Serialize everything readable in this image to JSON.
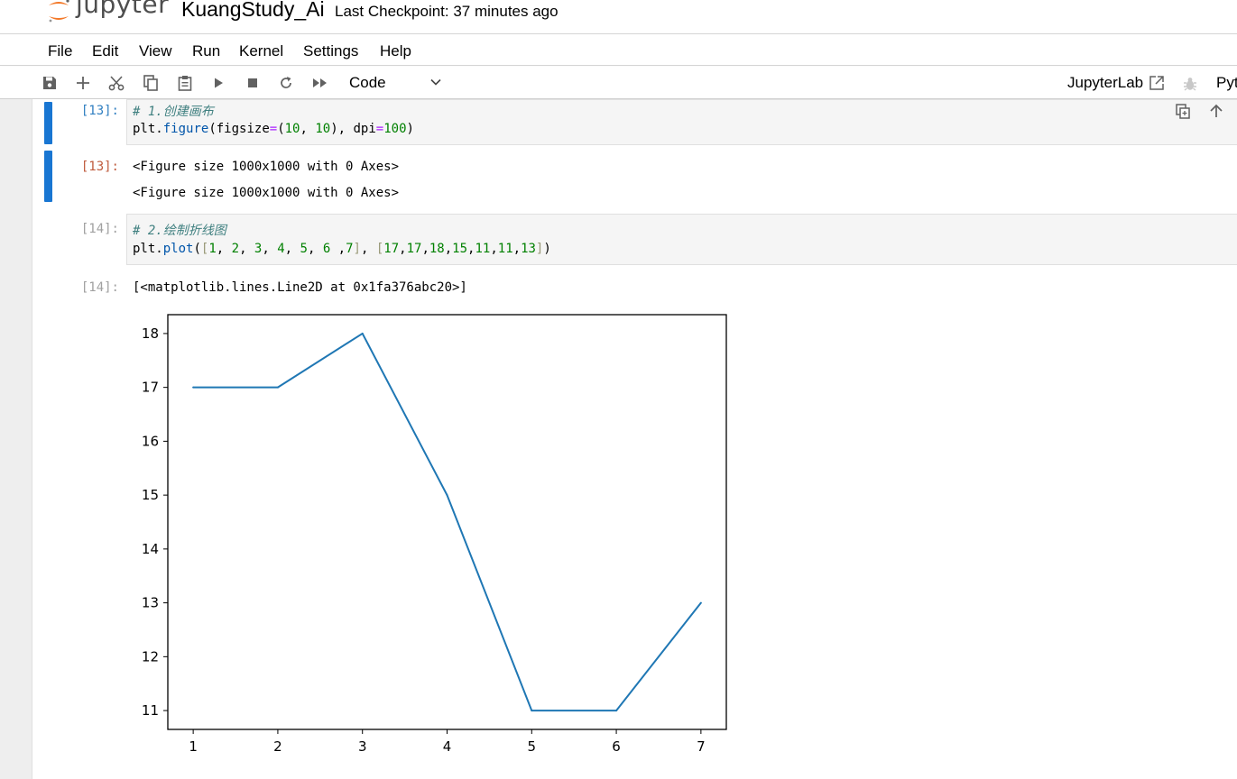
{
  "header": {
    "logo_text": "jupyter",
    "notebook_title": "KuangStudy_Ai",
    "checkpoint": "Last Checkpoint: 37 minutes ago"
  },
  "menu": {
    "items": [
      "File",
      "Edit",
      "View",
      "Run",
      "Kernel",
      "Settings",
      "Help"
    ]
  },
  "toolbar": {
    "icons": [
      "save-icon",
      "add-icon",
      "cut-icon",
      "copy-icon",
      "paste-icon",
      "run-icon",
      "stop-icon",
      "restart-icon",
      "run-all-icon"
    ],
    "cell_type": "Code",
    "jupyterlab_link": "JupyterLab",
    "kernel_name": "Pyt"
  },
  "cells": [
    {
      "in_prompt": "[13]:",
      "code": {
        "line1": "# 1.创建画布",
        "line2": {
          "obj": "plt",
          "dot": ".",
          "fn": "figure",
          "open": "(figsize",
          "eq": "=",
          "tuple_open": "(",
          "n1": "10",
          "comma": ", ",
          "n2": "10",
          "tuple_close": ")",
          "sep": ", dpi",
          "eq2": "=",
          "n3": "100",
          "close": ")"
        }
      },
      "out_prompt": "[13]:",
      "outputs": [
        "<Figure size 1000x1000 with 0 Axes>",
        "<Figure size 1000x1000 with 0 Axes>"
      ]
    },
    {
      "in_prompt": "[14]:",
      "code": {
        "line1": "# 2.绘制折线图",
        "line2": {
          "obj": "plt",
          "dot": ".",
          "fn": "plot",
          "open": "(",
          "lb1": "[",
          "xs": [
            "1",
            "2",
            "3",
            "4",
            "5",
            "6 ",
            "7"
          ],
          "rb1": "]",
          "mid": ", ",
          "lb2": "[",
          "ys": [
            "17",
            "17",
            "18",
            "15",
            "11",
            "11",
            "13"
          ],
          "rb2": "]",
          "close": ")"
        }
      },
      "out_prompt": "[14]:",
      "output_text": "[<matplotlib.lines.Line2D at 0x1fa376abc20>]"
    }
  ],
  "chart_data": {
    "type": "line",
    "x": [
      1,
      2,
      3,
      4,
      5,
      6,
      7
    ],
    "series": [
      {
        "values": [
          17,
          17,
          18,
          15,
          11,
          11,
          13
        ],
        "color": "#1f77b4"
      }
    ],
    "xticks": [
      "1",
      "2",
      "3",
      "4",
      "5",
      "6",
      "7"
    ],
    "yticks": [
      "11",
      "12",
      "13",
      "14",
      "15",
      "16",
      "17",
      "18"
    ],
    "xlim": [
      0.7,
      7.3
    ],
    "ylim": [
      10.65,
      18.35
    ],
    "grid": false,
    "title": "",
    "xlabel": "",
    "ylabel": ""
  }
}
